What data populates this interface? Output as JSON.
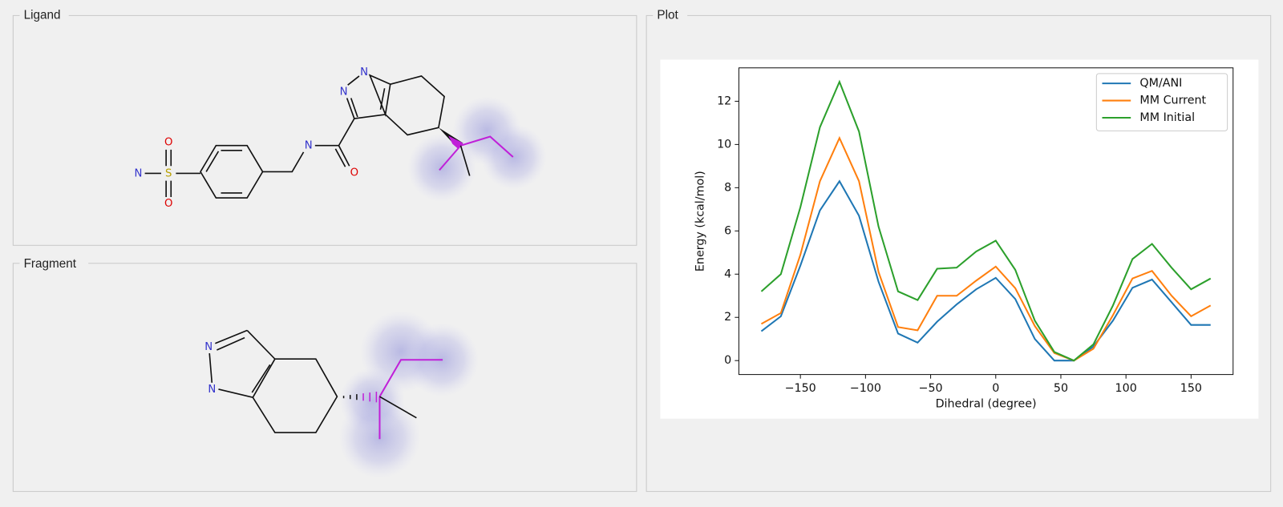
{
  "panels": {
    "ligand": {
      "title": "Ligand",
      "atoms": [
        "N",
        "S",
        "O",
        "O",
        "N",
        "O",
        "N",
        "N"
      ]
    },
    "fragment": {
      "title": "Fragment",
      "atoms": [
        "N",
        "N"
      ]
    },
    "plot": {
      "title": "Plot"
    }
  },
  "chart_data": {
    "type": "line",
    "x_label": "Dihedral (degree)",
    "y_label": "Energy (kcal/mol)",
    "x": [
      -180,
      -165,
      -150,
      -135,
      -120,
      -105,
      -90,
      -75,
      -60,
      -45,
      -30,
      -15,
      0,
      15,
      30,
      45,
      60,
      75,
      90,
      105,
      120,
      135,
      150,
      165
    ],
    "series": [
      {
        "name": "QM/ANI",
        "color": "#1f77b4",
        "values": [
          1.36,
          2.05,
          4.4,
          6.95,
          8.3,
          6.7,
          3.65,
          1.25,
          0.83,
          1.8,
          2.6,
          3.3,
          3.83,
          2.85,
          1.0,
          0,
          0,
          0.65,
          1.85,
          3.37,
          3.75,
          2.7,
          1.65,
          1.65
        ]
      },
      {
        "name": "MM Current",
        "color": "#ff7f0e",
        "values": [
          1.7,
          2.2,
          4.9,
          8.3,
          10.3,
          8.3,
          4.1,
          1.55,
          1.4,
          3.0,
          3.0,
          3.7,
          4.35,
          3.35,
          1.6,
          0.35,
          0,
          0.55,
          2.1,
          3.8,
          4.15,
          3.0,
          2.05,
          2.55
        ]
      },
      {
        "name": "MM Initial",
        "color": "#2ca02c",
        "values": [
          3.2,
          4.0,
          7.1,
          10.8,
          12.9,
          10.6,
          6.2,
          3.2,
          2.8,
          4.25,
          4.3,
          5.05,
          5.55,
          4.2,
          1.85,
          0.4,
          0,
          0.75,
          2.55,
          4.7,
          5.4,
          4.3,
          3.3,
          3.8
        ]
      }
    ],
    "xlim": [
      -197.25,
      182.25
    ],
    "xticks": [
      {
        "value": -150,
        "label": "−150"
      },
      {
        "value": -100,
        "label": "−100"
      },
      {
        "value": -50,
        "label": "−50"
      },
      0,
      50,
      100,
      150
    ],
    "ylim": [
      -0.645,
      13.545
    ],
    "yticks": [
      0,
      2,
      4,
      6,
      8,
      10,
      12
    ],
    "grid": false,
    "legend": "upper right"
  }
}
